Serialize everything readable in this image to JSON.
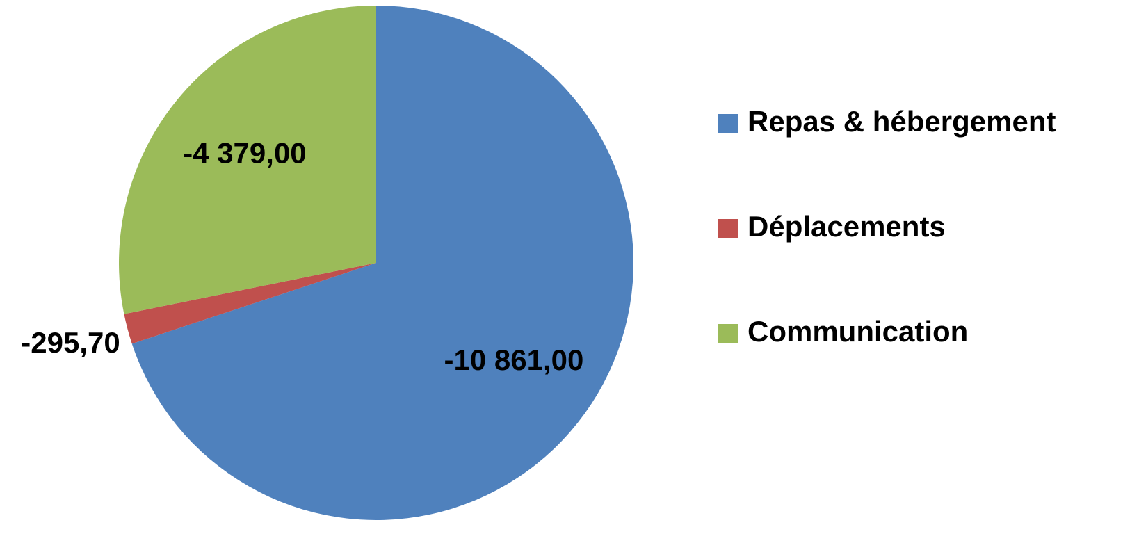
{
  "chart_data": {
    "type": "pie",
    "categories": [
      "Repas & hébergement",
      "Déplacements",
      "Communication"
    ],
    "values": [
      -10861,
      -295.7,
      -4379
    ],
    "value_labels": [
      "-10 861,00",
      "-295,70",
      "-4 379,00"
    ],
    "colors": [
      "#4f81bd",
      "#c0504d",
      "#9bbb59"
    ],
    "legend": "right"
  }
}
